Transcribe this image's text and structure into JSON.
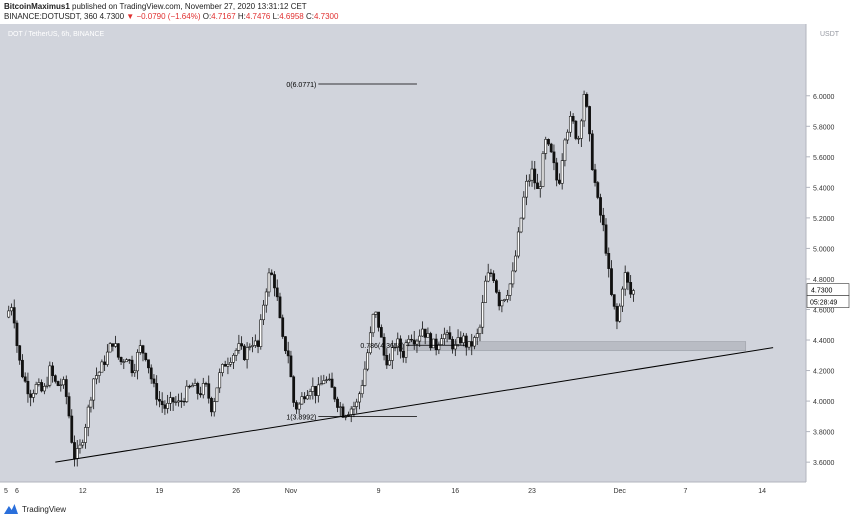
{
  "header": {
    "author": "BitcoinMaximus1",
    "published": "published on TradingView.com, November 27, 2020 13:31:12 CET",
    "symbol_line": "BINANCE:DOTUSDT, 360",
    "last": "4.7300",
    "change": "▼ −0.0790 (−1.64%)",
    "open_label": "O:",
    "open": "4.7167",
    "high_label": "H:",
    "high": "4.7476",
    "low_label": "L:",
    "low": "4.6958",
    "close_label": "C:",
    "close": "4.7300"
  },
  "footer": {
    "brand": "TradingView"
  },
  "colors": {
    "pane": "#d1d4dc",
    "candle": "#111111",
    "price_label": "#ffffff",
    "zone": "#b9bcc4"
  },
  "chart_data": {
    "type": "candlestick",
    "legend": "DOT / TetherUS, 6h, BINANCE",
    "currency": "USDT",
    "y_ticks": [
      "3.6000",
      "3.8000",
      "4.0000",
      "4.2000",
      "4.4000",
      "4.6000",
      "4.8000",
      "5.0000",
      "5.2000",
      "5.4000",
      "5.6000",
      "5.8000",
      "6.0000"
    ],
    "ylim": [
      3.47,
      6.47
    ],
    "x_ticks": [
      {
        "label": "5",
        "day": 0
      },
      {
        "label": "6",
        "day": 1
      },
      {
        "label": "12",
        "day": 7
      },
      {
        "label": "19",
        "day": 14
      },
      {
        "label": "26",
        "day": 21
      },
      {
        "label": "Nov",
        "day": 26
      },
      {
        "label": "9",
        "day": 34
      },
      {
        "label": "16",
        "day": 41
      },
      {
        "label": "23",
        "day": 48
      },
      {
        "label": "Dec",
        "day": 56
      },
      {
        "label": "7",
        "day": 62
      },
      {
        "label": "14",
        "day": 69
      }
    ],
    "xlim": [
      0,
      73
    ],
    "last_price": "4.7300",
    "countdown": "05:28:49",
    "below_price_label": "4.6000",
    "fib_levels": [
      {
        "label": "0(6.0771)",
        "value": 6.0771
      },
      {
        "label": "0.786(4.3658)",
        "value": 4.3658
      },
      {
        "label": "1(3.8992)",
        "value": 3.8992
      }
    ],
    "support_zone": {
      "from_day": 36.5,
      "to_day": 67.5,
      "low": 4.33,
      "high": 4.39
    },
    "trendline": {
      "start": {
        "day": 4.5,
        "value": 3.6
      },
      "end": {
        "day": 70.0,
        "value": 4.35
      }
    },
    "price_path": [
      [
        0,
        4.55
      ],
      [
        0.6,
        4.65
      ],
      [
        1.1,
        4.3
      ],
      [
        1.6,
        4.15
      ],
      [
        2.2,
        4.05
      ],
      [
        2.8,
        4.1
      ],
      [
        3.4,
        4.05
      ],
      [
        4.0,
        4.2
      ],
      [
        4.6,
        4.1
      ],
      [
        5.2,
        4.12
      ],
      [
        5.6,
        4.0
      ],
      [
        6.0,
        3.75
      ],
      [
        6.3,
        3.62
      ],
      [
        6.8,
        3.7
      ],
      [
        7.4,
        3.9
      ],
      [
        8.0,
        4.15
      ],
      [
        8.6,
        4.2
      ],
      [
        9.2,
        4.3
      ],
      [
        9.8,
        4.4
      ],
      [
        10.4,
        4.25
      ],
      [
        11.0,
        4.3
      ],
      [
        11.6,
        4.2
      ],
      [
        12.2,
        4.35
      ],
      [
        12.8,
        4.3
      ],
      [
        13.4,
        4.1
      ],
      [
        14.0,
        4.0
      ],
      [
        14.6,
        3.95
      ],
      [
        15.2,
        4.0
      ],
      [
        15.8,
        3.98
      ],
      [
        16.4,
        4.05
      ],
      [
        17.0,
        4.1
      ],
      [
        17.6,
        4.05
      ],
      [
        18.2,
        4.1
      ],
      [
        18.8,
        3.95
      ],
      [
        19.4,
        4.15
      ],
      [
        20.0,
        4.25
      ],
      [
        20.6,
        4.3
      ],
      [
        21.2,
        4.35
      ],
      [
        21.8,
        4.3
      ],
      [
        22.4,
        4.4
      ],
      [
        23.0,
        4.35
      ],
      [
        23.6,
        4.7
      ],
      [
        24.1,
        4.85
      ],
      [
        24.6,
        4.75
      ],
      [
        25.2,
        4.4
      ],
      [
        25.8,
        4.3
      ],
      [
        26.2,
        4.0
      ],
      [
        26.6,
        3.95
      ],
      [
        27.2,
        4.05
      ],
      [
        27.8,
        4.1
      ],
      [
        28.4,
        4.05
      ],
      [
        29.0,
        4.15
      ],
      [
        29.6,
        4.1
      ],
      [
        30.2,
        4.0
      ],
      [
        30.8,
        3.92
      ],
      [
        31.4,
        3.95
      ],
      [
        32.0,
        3.98
      ],
      [
        32.6,
        4.15
      ],
      [
        33.2,
        4.4
      ],
      [
        33.6,
        4.6
      ],
      [
        34.0,
        4.5
      ],
      [
        34.5,
        4.3
      ],
      [
        35.0,
        4.25
      ],
      [
        35.6,
        4.4
      ],
      [
        36.2,
        4.3
      ],
      [
        36.8,
        4.45
      ],
      [
        37.4,
        4.4
      ],
      [
        38.0,
        4.48
      ],
      [
        38.6,
        4.4
      ],
      [
        39.2,
        4.35
      ],
      [
        39.8,
        4.45
      ],
      [
        40.4,
        4.4
      ],
      [
        41.0,
        4.35
      ],
      [
        41.6,
        4.42
      ],
      [
        42.2,
        4.35
      ],
      [
        42.8,
        4.4
      ],
      [
        43.2,
        4.45
      ],
      [
        43.8,
        4.8
      ],
      [
        44.4,
        4.85
      ],
      [
        45.0,
        4.65
      ],
      [
        45.6,
        4.7
      ],
      [
        46.2,
        4.8
      ],
      [
        46.8,
        5.1
      ],
      [
        47.4,
        5.4
      ],
      [
        48.0,
        5.5
      ],
      [
        48.6,
        5.35
      ],
      [
        49.2,
        5.7
      ],
      [
        49.8,
        5.6
      ],
      [
        50.4,
        5.4
      ],
      [
        51.0,
        5.75
      ],
      [
        51.6,
        5.85
      ],
      [
        52.2,
        5.7
      ],
      [
        52.8,
        6.05
      ],
      [
        53.4,
        5.6
      ],
      [
        54.0,
        5.3
      ],
      [
        54.6,
        5.1
      ],
      [
        55.2,
        4.7
      ],
      [
        55.8,
        4.5
      ],
      [
        56.4,
        4.85
      ],
      [
        57.0,
        4.7
      ],
      [
        57.4,
        4.73
      ]
    ]
  }
}
